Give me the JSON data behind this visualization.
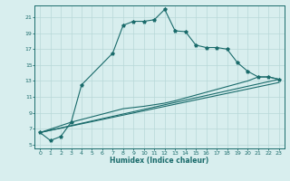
{
  "xlabel": "Humidex (Indice chaleur)",
  "ylabel": "",
  "background_color": "#d8eeee",
  "grid_color": "#b8d8d8",
  "line_color": "#1a6b6b",
  "xlim": [
    -0.5,
    23.5
  ],
  "ylim": [
    4.5,
    22.5
  ],
  "yticks": [
    5,
    7,
    9,
    11,
    13,
    15,
    17,
    19,
    21
  ],
  "xticks": [
    0,
    1,
    2,
    3,
    4,
    5,
    6,
    7,
    8,
    9,
    10,
    11,
    12,
    13,
    14,
    15,
    16,
    17,
    18,
    19,
    20,
    21,
    22,
    23
  ],
  "line1_x": [
    0,
    1,
    2,
    3,
    4,
    7,
    8,
    9,
    10,
    11,
    12,
    13,
    14,
    15,
    16,
    17,
    18,
    19,
    20,
    21,
    22,
    23
  ],
  "line1_y": [
    6.5,
    5.5,
    6.0,
    7.8,
    12.5,
    16.5,
    20.0,
    20.5,
    20.5,
    20.7,
    22.0,
    19.3,
    19.2,
    17.5,
    17.2,
    17.2,
    17.0,
    15.3,
    14.2,
    13.5,
    13.5,
    13.2
  ],
  "line2_x": [
    0,
    3,
    8,
    10,
    12,
    13,
    20,
    21,
    22,
    23
  ],
  "line2_y": [
    6.5,
    7.8,
    9.5,
    9.8,
    10.2,
    10.5,
    13.0,
    13.5,
    13.5,
    13.2
  ],
  "line3_x": [
    0,
    23
  ],
  "line3_y": [
    6.5,
    13.2
  ],
  "line4_x": [
    0,
    23
  ],
  "line4_y": [
    6.5,
    12.8
  ]
}
